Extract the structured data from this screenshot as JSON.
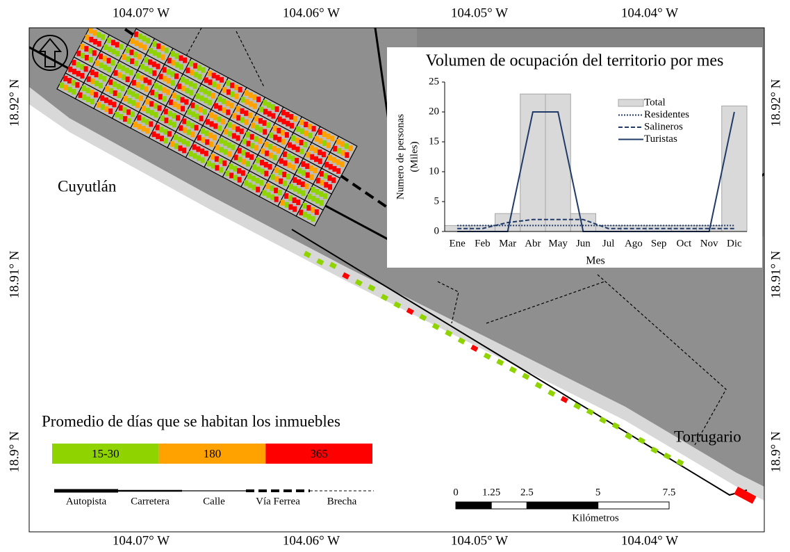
{
  "map": {
    "lon_labels": [
      "104.07° W",
      "104.06° W",
      "104.05° W",
      "104.04° W"
    ],
    "lat_labels": [
      "18.92° N",
      "18.91° N",
      "18.9° N"
    ],
    "places": [
      "Cuyutlán",
      "Tortugario"
    ],
    "legend": {
      "title": "Promedio de días que se habitan los inmuebles",
      "classes": [
        {
          "label": "15-30",
          "color": "#8fd400"
        },
        {
          "label": "180",
          "color": "#ffa200"
        },
        {
          "label": "365",
          "color": "#ff0000"
        }
      ]
    },
    "roads": [
      "Autopista",
      "Carretera",
      "Calle",
      "Vía Ferrea",
      "Brecha"
    ],
    "scale": {
      "ticks": [
        0,
        1.25,
        2.5,
        5,
        7.5
      ],
      "unit": "Kilómetros"
    }
  },
  "chart_data": {
    "type": "bar",
    "title": "Volumen de ocupación del territorio por mes",
    "y_label": [
      "Numero de personas",
      "(Miles)"
    ],
    "x_label": "Mes",
    "categories": [
      "Ene",
      "Feb",
      "Mar",
      "Abr",
      "May",
      "Jun",
      "Jul",
      "Ago",
      "Sep",
      "Oct",
      "Nov",
      "Dic"
    ],
    "series": [
      {
        "name": "Total",
        "kind": "bar",
        "color": "#d9d9d9",
        "values": [
          1,
          1,
          3,
          23,
          23,
          3,
          1,
          1,
          1,
          1,
          1,
          21
        ]
      },
      {
        "name": "Residentes",
        "kind": "dotted",
        "color": "#1f3a68",
        "values": [
          1,
          1,
          1,
          1,
          1,
          1,
          1,
          1,
          1,
          1,
          1,
          1
        ]
      },
      {
        "name": "Salineros",
        "kind": "dashed",
        "color": "#1f3a68",
        "values": [
          0.5,
          0.5,
          1.5,
          2,
          2,
          2,
          0.5,
          0.5,
          0.5,
          0.5,
          0.5,
          0.5
        ]
      },
      {
        "name": "Turistas",
        "kind": "solid",
        "color": "#1f3a68",
        "values": [
          0,
          0,
          0,
          20,
          20,
          0,
          0,
          0,
          0,
          0,
          0,
          20
        ]
      }
    ],
    "ylim": [
      0,
      25
    ],
    "yticks": [
      0,
      5,
      10,
      15,
      20,
      25
    ]
  }
}
